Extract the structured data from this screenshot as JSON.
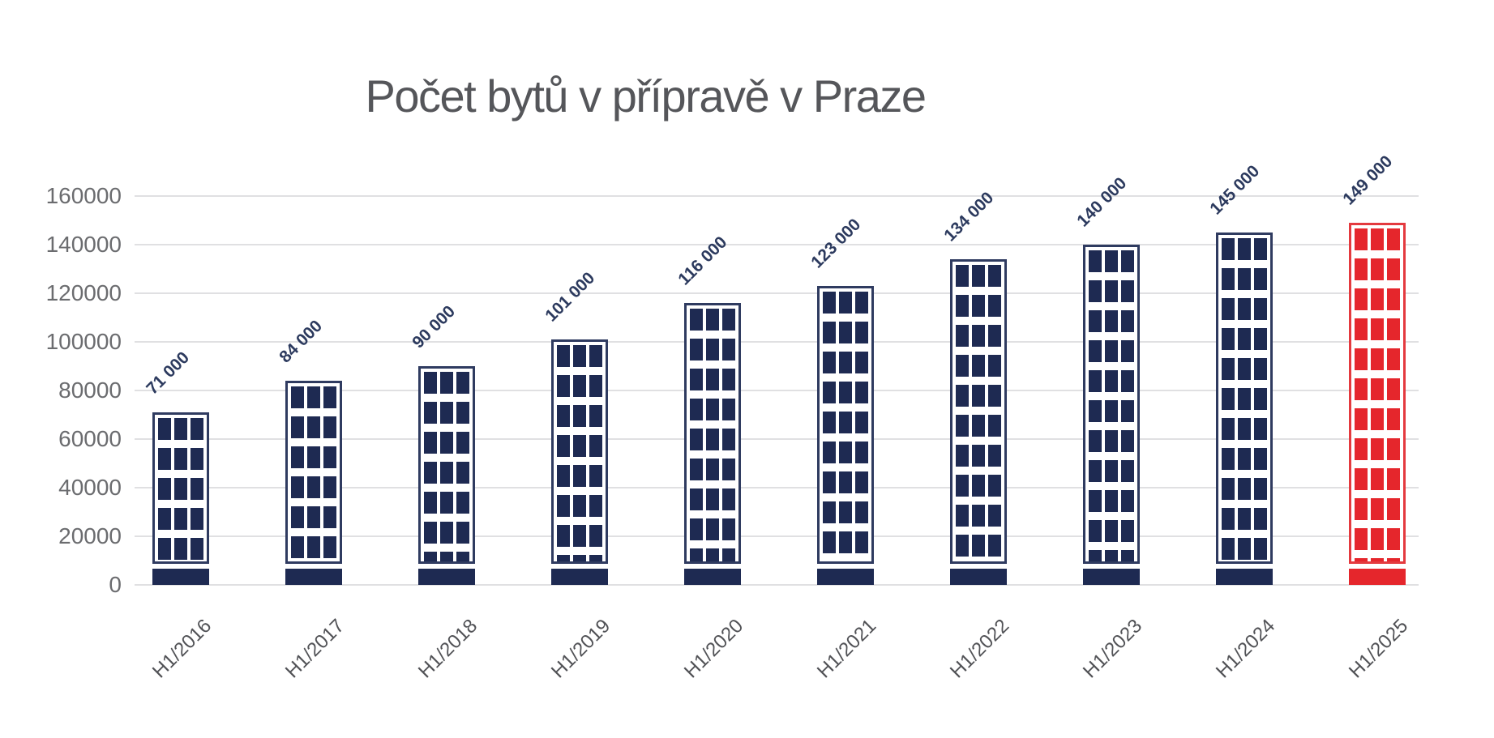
{
  "chart_data": {
    "type": "bar",
    "title": "Počet bytů v přípravě v Praze",
    "categories": [
      "H1/2016",
      "H1/2017",
      "H1/2018",
      "H1/2019",
      "H1/2020",
      "H1/2021",
      "H1/2022",
      "H1/2023",
      "H1/2024",
      "H1/2025"
    ],
    "values": [
      71000,
      84000,
      90000,
      101000,
      116000,
      123000,
      134000,
      140000,
      145000,
      149000
    ],
    "value_labels": [
      "71 000",
      "84 000",
      "90 000",
      "101 000",
      "116 000",
      "123 000",
      "134 000",
      "140 000",
      "145 000",
      "149 000"
    ],
    "xlabel": "",
    "ylabel": "",
    "ylim": [
      0,
      160000
    ],
    "ytick_step": 20000,
    "ytick_labels": [
      "0",
      "20000",
      "40000",
      "60000",
      "80000",
      "100000",
      "120000",
      "140000",
      "160000"
    ],
    "grid": true,
    "legend": "none",
    "highlight_index": 9,
    "bar_style": "building-with-windows",
    "colors": {
      "bar_window": "#1e2a52",
      "bar_border": "#2f3b60",
      "bar_base": "#1e2a52",
      "highlight_window": "#e5262c",
      "highlight_border": "#e43a3f",
      "highlight_base": "#e5262c",
      "title_text": "#55565a",
      "ytick_text": "#6b6c6f",
      "xtick_text": "#515256",
      "value_label_text": "#2c3a5e",
      "gridline": "#e0e0e2",
      "background": "#ffffff"
    }
  }
}
